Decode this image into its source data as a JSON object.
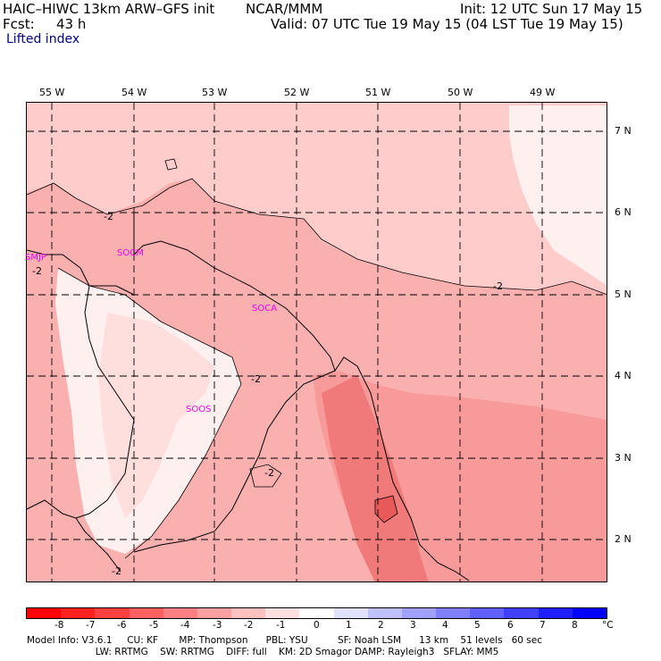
{
  "header": {
    "model": "HAIC–HIWC 13km ARW–GFS init",
    "org": "NCAR/MMM",
    "init": "Init: 12 UTC Sun 17 May 15",
    "fcst_label": "Fcst:",
    "fcst_value": "43 h",
    "valid": "Valid: 07 UTC Tue 19 May 15 (04 LST Tue 19 May 15)",
    "field": "Lifted index"
  },
  "map": {
    "lon_labels": [
      "55 W",
      "54 W",
      "53 W",
      "52 W",
      "51 W",
      "50 W",
      "49 W"
    ],
    "lat_labels": [
      "7 N",
      "6 N",
      "5 N",
      "4 N",
      "3 N",
      "2 N"
    ],
    "stations": [
      "SMJP",
      "SOCM",
      "SOCA",
      "SOOS"
    ],
    "contour_labels": [
      "-2",
      "-2",
      "-2",
      "-2",
      "-2",
      "-2"
    ],
    "colors": {
      "very_light": "#fff0f0",
      "light": "#ffcccc",
      "mid": "#fbb0b0",
      "darker": "#f99a9a",
      "dark": "#f07a7a",
      "station": "#ee00ee"
    }
  },
  "colorbar": {
    "ticks": [
      "-8",
      "-7",
      "-6",
      "-5",
      "-4",
      "-3",
      "-2",
      "-1",
      "0",
      "1",
      "2",
      "3",
      "4",
      "5",
      "6",
      "7",
      "8"
    ],
    "unit": "°C",
    "colors": [
      "#ff0000",
      "#ff2020",
      "#ff4040",
      "#ff6060",
      "#ff8080",
      "#ffa0a0",
      "#ffc0c0",
      "#ffe0e0",
      "#ffffff",
      "#e0e0ff",
      "#c0c0ff",
      "#a0a0ff",
      "#8080ff",
      "#6060ff",
      "#4040ff",
      "#2020ff",
      "#0000ff"
    ]
  },
  "footer": {
    "line1": "Model Info: V3.6.1     CU: KF       MP: Thompson      PBL: YSU          SF: Noah LSM      13 km    51 levels   60 sec",
    "line2": "                       LW: RRTMG    SW: RRTMG    DIFF: full    KM: 2D Smagor DAMP: Rayleigh3   SFLAY: MM5"
  }
}
